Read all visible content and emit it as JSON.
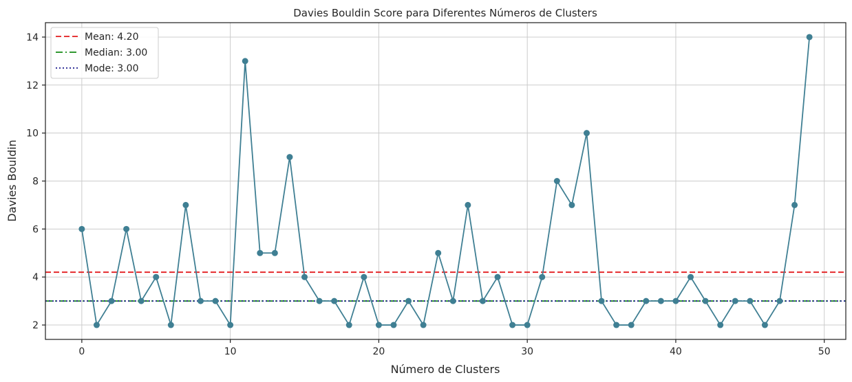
{
  "chart_data": {
    "type": "line",
    "title": "Davies Bouldin Score para Diferentes Números de Clusters",
    "xlabel": "Número de Clusters",
    "ylabel": "Davies Bouldin",
    "xlim": [
      -2.45,
      51.45
    ],
    "ylim": [
      1.4,
      14.6
    ],
    "xticks": [
      0,
      10,
      20,
      30,
      40,
      50
    ],
    "yticks": [
      2,
      4,
      6,
      8,
      10,
      12,
      14
    ],
    "grid": true,
    "legend_position": "top-left",
    "series": [
      {
        "color": "#3f7f93",
        "marker": "circle",
        "x": [
          0,
          1,
          2,
          3,
          4,
          5,
          6,
          7,
          8,
          9,
          10,
          11,
          12,
          13,
          14,
          15,
          16,
          17,
          18,
          19,
          20,
          21,
          22,
          23,
          24,
          25,
          26,
          27,
          28,
          29,
          30,
          31,
          32,
          33,
          34,
          35,
          36,
          37,
          38,
          39,
          40,
          41,
          42,
          43,
          44,
          45,
          46,
          47,
          48,
          49
        ],
        "y": [
          6,
          2,
          3,
          6,
          3,
          4,
          2,
          7,
          3,
          3,
          2,
          13,
          5,
          5,
          9,
          4,
          3,
          3,
          2,
          4,
          2,
          2,
          3,
          2,
          5,
          3,
          7,
          3,
          4,
          2,
          2,
          4,
          8,
          7,
          10,
          3,
          2,
          2,
          3,
          3,
          3,
          4,
          3,
          2,
          3,
          3,
          2,
          3,
          7,
          14
        ]
      }
    ],
    "reference_lines": [
      {
        "label": "Mean: 4.20",
        "value": 4.2,
        "color": "#e31a1c",
        "dash": "dashed"
      },
      {
        "label": "Median: 3.00",
        "value": 3.0,
        "color": "#138a13",
        "dash": "dashdot"
      },
      {
        "label": "Mode: 3.00",
        "value": 3.0,
        "color": "#1a1a8c",
        "dash": "dotted"
      }
    ]
  }
}
